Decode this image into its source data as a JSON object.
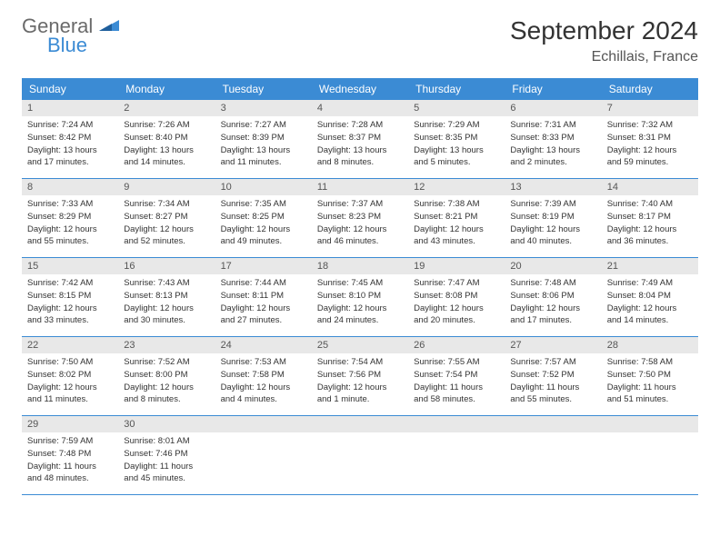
{
  "logo": {
    "text1": "General",
    "text2": "Blue"
  },
  "title": "September 2024",
  "location": "Echillais, France",
  "colors": {
    "accent": "#3b8bd4",
    "header_bg": "#3b8bd4",
    "daynum_bg": "#e8e8e8",
    "text": "#333333"
  },
  "day_headers": [
    "Sunday",
    "Monday",
    "Tuesday",
    "Wednesday",
    "Thursday",
    "Friday",
    "Saturday"
  ],
  "weeks": [
    [
      {
        "n": "1",
        "sr": "Sunrise: 7:24 AM",
        "ss": "Sunset: 8:42 PM",
        "d1": "Daylight: 13 hours",
        "d2": "and 17 minutes."
      },
      {
        "n": "2",
        "sr": "Sunrise: 7:26 AM",
        "ss": "Sunset: 8:40 PM",
        "d1": "Daylight: 13 hours",
        "d2": "and 14 minutes."
      },
      {
        "n": "3",
        "sr": "Sunrise: 7:27 AM",
        "ss": "Sunset: 8:39 PM",
        "d1": "Daylight: 13 hours",
        "d2": "and 11 minutes."
      },
      {
        "n": "4",
        "sr": "Sunrise: 7:28 AM",
        "ss": "Sunset: 8:37 PM",
        "d1": "Daylight: 13 hours",
        "d2": "and 8 minutes."
      },
      {
        "n": "5",
        "sr": "Sunrise: 7:29 AM",
        "ss": "Sunset: 8:35 PM",
        "d1": "Daylight: 13 hours",
        "d2": "and 5 minutes."
      },
      {
        "n": "6",
        "sr": "Sunrise: 7:31 AM",
        "ss": "Sunset: 8:33 PM",
        "d1": "Daylight: 13 hours",
        "d2": "and 2 minutes."
      },
      {
        "n": "7",
        "sr": "Sunrise: 7:32 AM",
        "ss": "Sunset: 8:31 PM",
        "d1": "Daylight: 12 hours",
        "d2": "and 59 minutes."
      }
    ],
    [
      {
        "n": "8",
        "sr": "Sunrise: 7:33 AM",
        "ss": "Sunset: 8:29 PM",
        "d1": "Daylight: 12 hours",
        "d2": "and 55 minutes."
      },
      {
        "n": "9",
        "sr": "Sunrise: 7:34 AM",
        "ss": "Sunset: 8:27 PM",
        "d1": "Daylight: 12 hours",
        "d2": "and 52 minutes."
      },
      {
        "n": "10",
        "sr": "Sunrise: 7:35 AM",
        "ss": "Sunset: 8:25 PM",
        "d1": "Daylight: 12 hours",
        "d2": "and 49 minutes."
      },
      {
        "n": "11",
        "sr": "Sunrise: 7:37 AM",
        "ss": "Sunset: 8:23 PM",
        "d1": "Daylight: 12 hours",
        "d2": "and 46 minutes."
      },
      {
        "n": "12",
        "sr": "Sunrise: 7:38 AM",
        "ss": "Sunset: 8:21 PM",
        "d1": "Daylight: 12 hours",
        "d2": "and 43 minutes."
      },
      {
        "n": "13",
        "sr": "Sunrise: 7:39 AM",
        "ss": "Sunset: 8:19 PM",
        "d1": "Daylight: 12 hours",
        "d2": "and 40 minutes."
      },
      {
        "n": "14",
        "sr": "Sunrise: 7:40 AM",
        "ss": "Sunset: 8:17 PM",
        "d1": "Daylight: 12 hours",
        "d2": "and 36 minutes."
      }
    ],
    [
      {
        "n": "15",
        "sr": "Sunrise: 7:42 AM",
        "ss": "Sunset: 8:15 PM",
        "d1": "Daylight: 12 hours",
        "d2": "and 33 minutes."
      },
      {
        "n": "16",
        "sr": "Sunrise: 7:43 AM",
        "ss": "Sunset: 8:13 PM",
        "d1": "Daylight: 12 hours",
        "d2": "and 30 minutes."
      },
      {
        "n": "17",
        "sr": "Sunrise: 7:44 AM",
        "ss": "Sunset: 8:11 PM",
        "d1": "Daylight: 12 hours",
        "d2": "and 27 minutes."
      },
      {
        "n": "18",
        "sr": "Sunrise: 7:45 AM",
        "ss": "Sunset: 8:10 PM",
        "d1": "Daylight: 12 hours",
        "d2": "and 24 minutes."
      },
      {
        "n": "19",
        "sr": "Sunrise: 7:47 AM",
        "ss": "Sunset: 8:08 PM",
        "d1": "Daylight: 12 hours",
        "d2": "and 20 minutes."
      },
      {
        "n": "20",
        "sr": "Sunrise: 7:48 AM",
        "ss": "Sunset: 8:06 PM",
        "d1": "Daylight: 12 hours",
        "d2": "and 17 minutes."
      },
      {
        "n": "21",
        "sr": "Sunrise: 7:49 AM",
        "ss": "Sunset: 8:04 PM",
        "d1": "Daylight: 12 hours",
        "d2": "and 14 minutes."
      }
    ],
    [
      {
        "n": "22",
        "sr": "Sunrise: 7:50 AM",
        "ss": "Sunset: 8:02 PM",
        "d1": "Daylight: 12 hours",
        "d2": "and 11 minutes."
      },
      {
        "n": "23",
        "sr": "Sunrise: 7:52 AM",
        "ss": "Sunset: 8:00 PM",
        "d1": "Daylight: 12 hours",
        "d2": "and 8 minutes."
      },
      {
        "n": "24",
        "sr": "Sunrise: 7:53 AM",
        "ss": "Sunset: 7:58 PM",
        "d1": "Daylight: 12 hours",
        "d2": "and 4 minutes."
      },
      {
        "n": "25",
        "sr": "Sunrise: 7:54 AM",
        "ss": "Sunset: 7:56 PM",
        "d1": "Daylight: 12 hours",
        "d2": "and 1 minute."
      },
      {
        "n": "26",
        "sr": "Sunrise: 7:55 AM",
        "ss": "Sunset: 7:54 PM",
        "d1": "Daylight: 11 hours",
        "d2": "and 58 minutes."
      },
      {
        "n": "27",
        "sr": "Sunrise: 7:57 AM",
        "ss": "Sunset: 7:52 PM",
        "d1": "Daylight: 11 hours",
        "d2": "and 55 minutes."
      },
      {
        "n": "28",
        "sr": "Sunrise: 7:58 AM",
        "ss": "Sunset: 7:50 PM",
        "d1": "Daylight: 11 hours",
        "d2": "and 51 minutes."
      }
    ],
    [
      {
        "n": "29",
        "sr": "Sunrise: 7:59 AM",
        "ss": "Sunset: 7:48 PM",
        "d1": "Daylight: 11 hours",
        "d2": "and 48 minutes."
      },
      {
        "n": "30",
        "sr": "Sunrise: 8:01 AM",
        "ss": "Sunset: 7:46 PM",
        "d1": "Daylight: 11 hours",
        "d2": "and 45 minutes."
      },
      {
        "empty": true
      },
      {
        "empty": true
      },
      {
        "empty": true
      },
      {
        "empty": true
      },
      {
        "empty": true
      }
    ]
  ]
}
